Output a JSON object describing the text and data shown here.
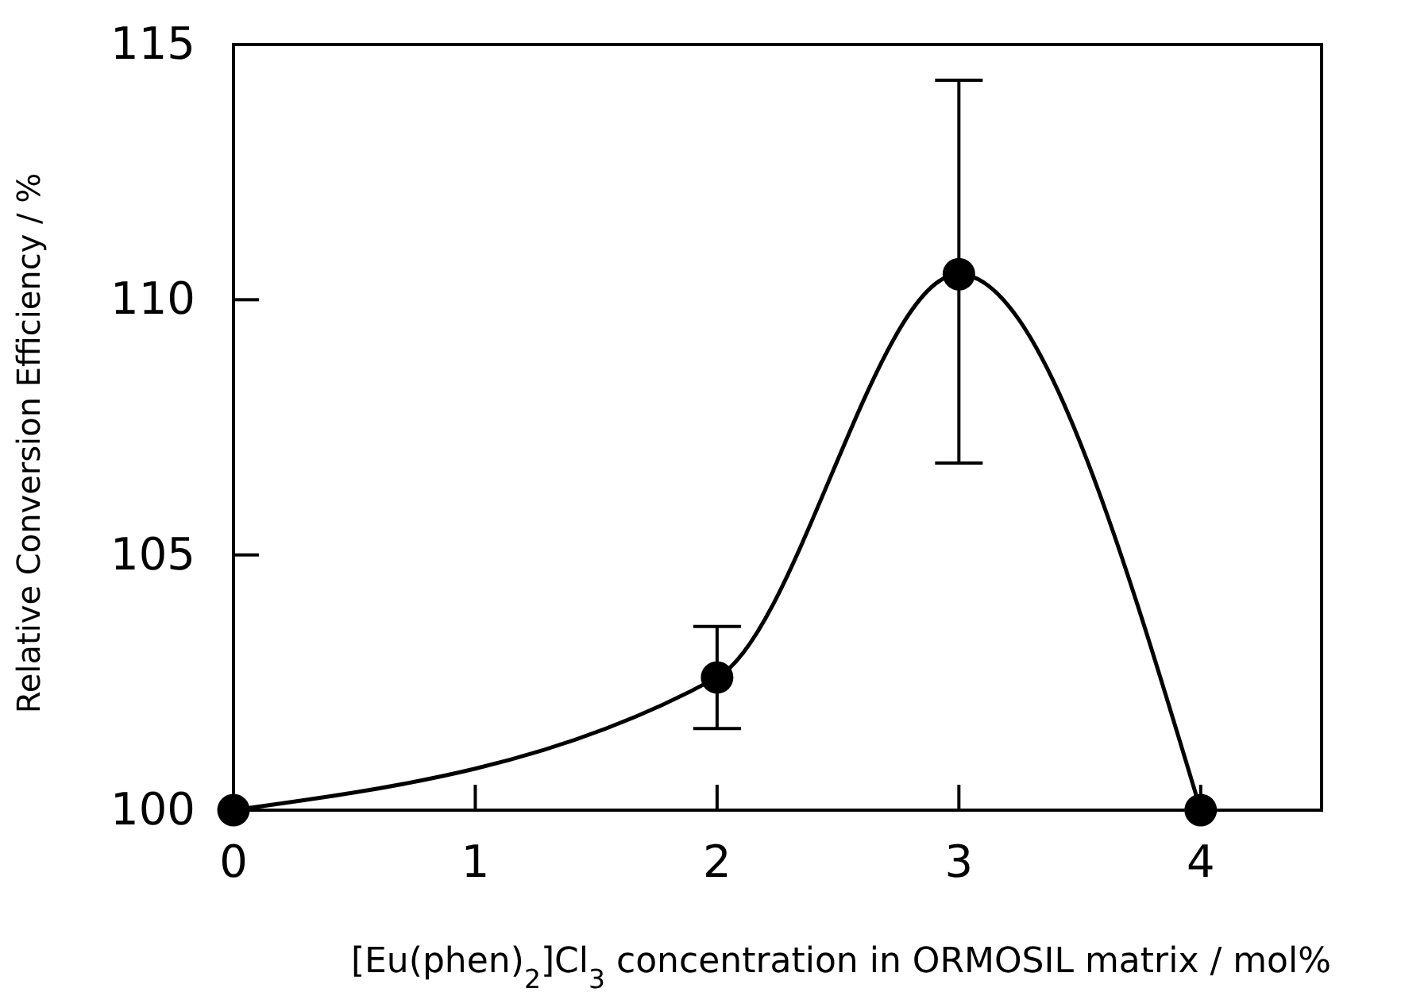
{
  "chart_data": {
    "type": "line",
    "xlabel": "[Eu(phen)$_{2}$]Cl$_{3}$ concentration in ORMOSIL matrix / mol%",
    "ylabel": "Relative Conversion Efficiency / %",
    "x": [
      0,
      2,
      3,
      4
    ],
    "series": [
      {
        "color": "#000000",
        "values": [
          100,
          102.6,
          110.5,
          100
        ],
        "errors": [
          null,
          [
            101.6,
            103.6
          ],
          [
            106.8,
            114.3
          ],
          null
        ]
      }
    ],
    "xlim": [
      0,
      4.5
    ],
    "xticks": [
      0,
      1,
      2,
      3,
      4
    ],
    "ylim": [
      100,
      115
    ],
    "yticks": [
      100,
      105,
      110,
      115
    ],
    "marker": "circle",
    "line_style": "solid"
  }
}
